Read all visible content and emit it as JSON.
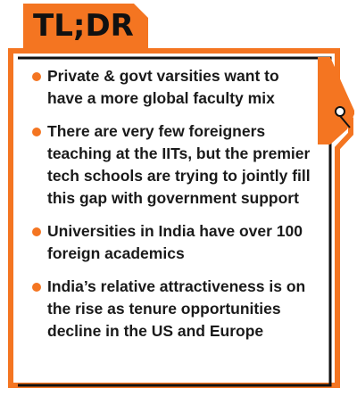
{
  "header": {
    "title": "TL;DR"
  },
  "colors": {
    "accent": "#f47521",
    "frame": "#111111",
    "text": "#1a1a1a"
  },
  "items": [
    {
      "text": "Private & govt varsities want to have a more global faculty mix"
    },
    {
      "text": "There are very few foreigners teaching at the IITs, but the premier tech schools are trying to jointly fill this gap with government support"
    },
    {
      "text": "Universities in India have over 100 foreign academics"
    },
    {
      "text": "India’s relative attractiveness is on the rise as tenure opportunities decline in the US and Europe"
    }
  ],
  "decoration": {
    "icon": "pen-nib-icon"
  }
}
